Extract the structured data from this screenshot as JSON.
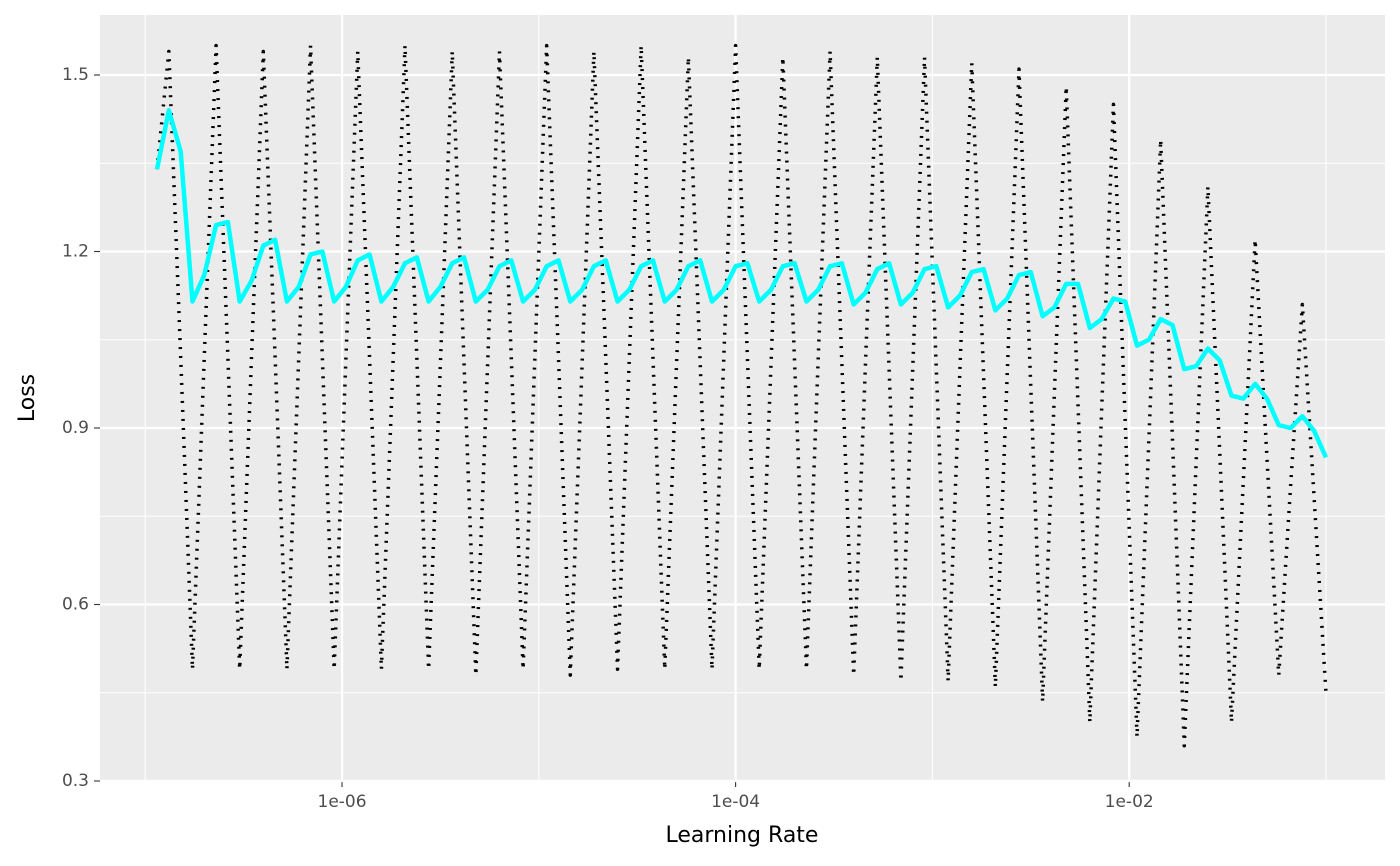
{
  "chart_data": {
    "type": "line",
    "x_label": "Learning Rate",
    "y_label": "Loss",
    "xscale": "log",
    "grid": true,
    "xlim": [
      5.89e-08,
      0.1995
    ],
    "ylim": [
      0.3,
      1.602
    ],
    "xticks": [
      {
        "value": 1e-06,
        "label": "1e-06"
      },
      {
        "value": 0.0001,
        "label": "1e-04"
      },
      {
        "value": 0.01,
        "label": "1e-02"
      }
    ],
    "xminorticks": [
      1e-07,
      1e-05,
      0.001,
      0.1
    ],
    "yticks": [
      0.3,
      0.6,
      0.9,
      1.2,
      1.5
    ],
    "yminorticks": [
      0.45,
      0.75,
      1.05,
      1.35
    ],
    "x": [
      1.148e-07,
      1.318e-07,
      1.514e-07,
      1.738e-07,
      1.995e-07,
      2.291e-07,
      2.63e-07,
      3.02e-07,
      3.467e-07,
      3.981e-07,
      4.571e-07,
      5.248e-07,
      6.026e-07,
      6.918e-07,
      7.943e-07,
      9.12e-07,
      1.047e-06,
      1.202e-06,
      1.38e-06,
      1.585e-06,
      1.82e-06,
      2.089e-06,
      2.399e-06,
      2.754e-06,
      3.162e-06,
      3.631e-06,
      4.169e-06,
      4.786e-06,
      5.495e-06,
      6.31e-06,
      7.244e-06,
      8.318e-06,
      9.55e-06,
      1.096e-05,
      1.259e-05,
      1.445e-05,
      1.66e-05,
      1.905e-05,
      2.188e-05,
      2.512e-05,
      2.884e-05,
      3.311e-05,
      3.802e-05,
      4.365e-05,
      5.012e-05,
      5.754e-05,
      6.607e-05,
      7.586e-05,
      8.71e-05,
      0.0001,
      0.0001148,
      0.0001318,
      0.0001514,
      0.0001738,
      0.0001995,
      0.0002291,
      0.000263,
      0.000302,
      0.0003467,
      0.0003981,
      0.0004571,
      0.0005248,
      0.0006026,
      0.0006918,
      0.0007943,
      0.000912,
      0.001047,
      0.001202,
      0.00138,
      0.001585,
      0.00182,
      0.002089,
      0.002399,
      0.002754,
      0.003162,
      0.003631,
      0.004169,
      0.004786,
      0.005495,
      0.00631,
      0.007244,
      0.008318,
      0.00955,
      0.01096,
      0.01259,
      0.01445,
      0.0166,
      0.01905,
      0.02188,
      0.02512,
      0.02884,
      0.03311,
      0.03802,
      0.04365,
      0.05012,
      0.05754,
      0.06607,
      0.07586,
      0.0871,
      0.1
    ],
    "series": [
      {
        "color": "#000000",
        "linestyle": "dotted",
        "values": [
          1.34,
          1.54,
          1.02,
          0.49,
          1.02,
          1.55,
          1.02,
          0.49,
          1.02,
          1.54,
          1.02,
          0.49,
          1.02,
          1.55,
          1.02,
          0.49,
          1.02,
          1.54,
          1.02,
          0.49,
          1.02,
          1.55,
          1.02,
          0.49,
          1.01,
          1.54,
          1.01,
          0.48,
          1.01,
          1.54,
          1.02,
          0.49,
          1.02,
          1.55,
          1.02,
          0.48,
          1.01,
          1.54,
          1.02,
          0.49,
          1.02,
          1.55,
          1.02,
          0.49,
          1.01,
          1.53,
          1.01,
          0.49,
          1.02,
          1.55,
          1.02,
          0.49,
          1.01,
          1.53,
          1.01,
          0.49,
          1.02,
          1.54,
          1.01,
          0.48,
          1.01,
          1.53,
          1.0,
          0.47,
          1.0,
          1.53,
          1.0,
          0.47,
          1.0,
          1.52,
          0.99,
          0.46,
          0.99,
          1.51,
          0.97,
          0.435,
          0.96,
          1.48,
          0.94,
          0.4,
          0.93,
          1.45,
          0.91,
          0.375,
          0.88,
          1.39,
          0.88,
          0.36,
          0.84,
          1.31,
          0.86,
          0.4,
          0.81,
          1.22,
          0.85,
          0.48,
          0.8,
          1.11,
          0.78,
          0.45
        ]
      },
      {
        "color": "#00FFFF",
        "linestyle": "solid",
        "values": [
          1.34,
          1.44,
          1.37,
          1.115,
          1.16,
          1.245,
          1.25,
          1.115,
          1.15,
          1.21,
          1.22,
          1.115,
          1.14,
          1.195,
          1.2,
          1.115,
          1.14,
          1.185,
          1.195,
          1.115,
          1.14,
          1.18,
          1.19,
          1.115,
          1.14,
          1.18,
          1.19,
          1.115,
          1.135,
          1.175,
          1.185,
          1.115,
          1.135,
          1.175,
          1.185,
          1.115,
          1.135,
          1.175,
          1.185,
          1.115,
          1.135,
          1.175,
          1.185,
          1.115,
          1.135,
          1.175,
          1.185,
          1.115,
          1.135,
          1.175,
          1.18,
          1.115,
          1.135,
          1.175,
          1.18,
          1.115,
          1.135,
          1.175,
          1.18,
          1.11,
          1.13,
          1.17,
          1.18,
          1.11,
          1.13,
          1.17,
          1.175,
          1.105,
          1.125,
          1.165,
          1.17,
          1.1,
          1.12,
          1.16,
          1.165,
          1.09,
          1.105,
          1.145,
          1.145,
          1.07,
          1.085,
          1.12,
          1.115,
          1.04,
          1.05,
          1.085,
          1.075,
          1.0,
          1.005,
          1.035,
          1.015,
          0.955,
          0.95,
          0.975,
          0.95,
          0.905,
          0.9,
          0.92,
          0.895,
          0.85
        ]
      }
    ]
  }
}
